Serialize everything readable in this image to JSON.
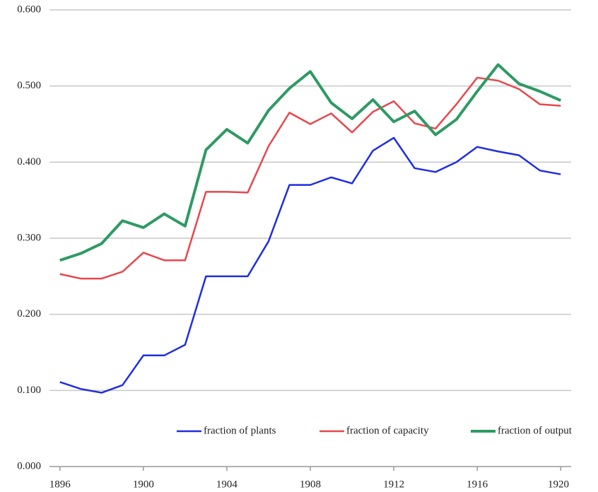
{
  "chart_data": {
    "type": "line",
    "x": [
      1896,
      1897,
      1898,
      1899,
      1900,
      1901,
      1902,
      1903,
      1904,
      1905,
      1906,
      1907,
      1908,
      1909,
      1910,
      1911,
      1912,
      1913,
      1914,
      1915,
      1916,
      1917,
      1918,
      1919,
      1920
    ],
    "series": [
      {
        "name": "fraction of plants",
        "color": "#1f2ee0",
        "values": [
          0.111,
          0.102,
          0.097,
          0.107,
          0.146,
          0.146,
          0.16,
          0.25,
          0.25,
          0.25,
          0.296,
          0.37,
          0.37,
          0.38,
          0.372,
          0.415,
          0.432,
          0.392,
          0.387,
          0.4,
          0.42,
          0.414,
          0.409,
          0.389,
          0.384
        ]
      },
      {
        "name": "fraction of capacity",
        "color": "#e8474c",
        "values": [
          0.253,
          0.247,
          0.247,
          0.256,
          0.281,
          0.271,
          0.271,
          0.361,
          0.361,
          0.36,
          0.421,
          0.465,
          0.45,
          0.464,
          0.439,
          0.466,
          0.48,
          0.451,
          0.444,
          0.476,
          0.511,
          0.507,
          0.496,
          0.476,
          0.474
        ]
      },
      {
        "name": "fraction of output",
        "color": "#2f9a64",
        "values": [
          0.271,
          0.28,
          0.293,
          0.323,
          0.314,
          0.332,
          0.316,
          0.416,
          0.443,
          0.425,
          0.468,
          0.497,
          0.519,
          0.478,
          0.457,
          0.482,
          0.453,
          0.467,
          0.436,
          0.456,
          0.493,
          0.528,
          0.503,
          0.493,
          0.481
        ]
      }
    ],
    "xlim": [
      1895.5,
      1920.5
    ],
    "xticks": [
      1896,
      1900,
      1904,
      1908,
      1912,
      1916,
      1920
    ],
    "ylim": [
      0,
      0.6
    ],
    "yticks": [
      {
        "value": 0,
        "label": "0.000"
      },
      {
        "value": 0.1,
        "label": "0.100"
      },
      {
        "value": 0.2,
        "label": "0.200"
      },
      {
        "value": 0.3,
        "label": "0.300"
      },
      {
        "value": 0.4,
        "label": "0.400"
      },
      {
        "value": 0.5,
        "label": "0.500"
      },
      {
        "value": 0.6,
        "label": "0.600"
      }
    ],
    "grid": true
  }
}
